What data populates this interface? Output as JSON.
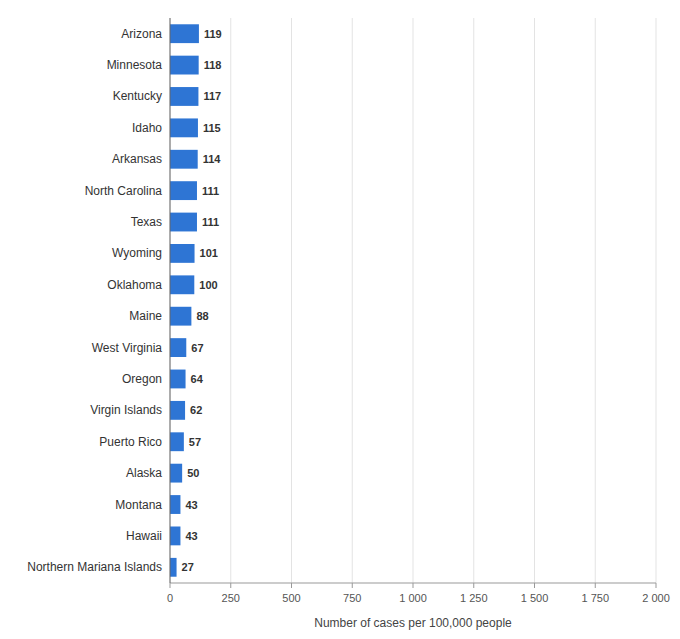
{
  "chart_data": {
    "type": "bar",
    "orientation": "horizontal",
    "categories": [
      "Arizona",
      "Minnesota",
      "Kentucky",
      "Idaho",
      "Arkansas",
      "North Carolina",
      "Texas",
      "Wyoming",
      "Oklahoma",
      "Maine",
      "West Virginia",
      "Oregon",
      "Virgin Islands",
      "Puerto Rico",
      "Alaska",
      "Montana",
      "Hawaii",
      "Northern Mariana Islands"
    ],
    "values": [
      119,
      118,
      117,
      115,
      114,
      111,
      111,
      101,
      100,
      88,
      67,
      64,
      62,
      57,
      50,
      43,
      43,
      27
    ],
    "color": "#2e75d4",
    "xlabel": "Number of cases per 100,000 people",
    "xlim": [
      0,
      2000
    ],
    "xticks": [
      0,
      250,
      500,
      750,
      {
        "value": 1000,
        "label": "1 000"
      },
      {
        "value": 1250,
        "label": "1 250"
      },
      {
        "value": 1500,
        "label": "1 500"
      },
      {
        "value": 1750,
        "label": "1 750"
      },
      {
        "value": 2000,
        "label": "2 000"
      }
    ],
    "grid": true,
    "data_labels": true
  }
}
